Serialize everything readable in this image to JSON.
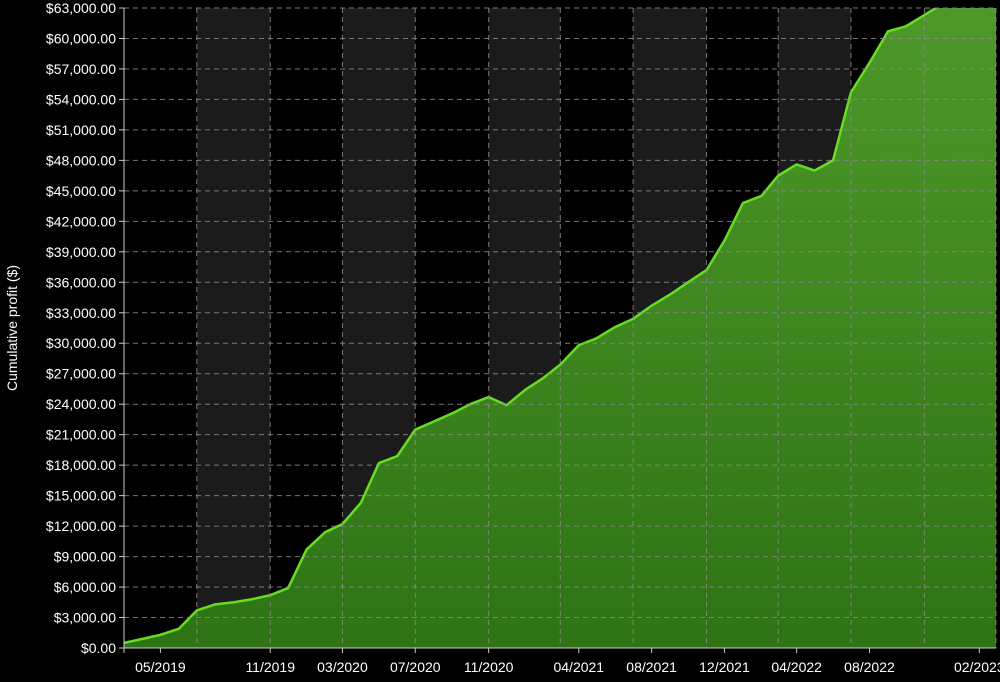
{
  "chart_data": {
    "type": "area",
    "title": "",
    "xlabel": "",
    "ylabel": "Cumulative profit ($)",
    "ylim": [
      0,
      63000
    ],
    "xlim": [
      "2019-03-01",
      "2023-03-01"
    ],
    "grid": true,
    "colors": {
      "background": "#000000",
      "band": "#1b1b1b",
      "line": "#66dd22",
      "fill_top": "#4f9a2a",
      "fill_bottom": "#2e7314",
      "axis": "#cccccc"
    },
    "y_ticks": [
      {
        "value": 0,
        "label": "$0.00"
      },
      {
        "value": 3000,
        "label": "$3,000.00"
      },
      {
        "value": 6000,
        "label": "$6,000.00"
      },
      {
        "value": 9000,
        "label": "$9,000.00"
      },
      {
        "value": 12000,
        "label": "$12,000.00"
      },
      {
        "value": 15000,
        "label": "$15,000.00"
      },
      {
        "value": 18000,
        "label": "$18,000.00"
      },
      {
        "value": 21000,
        "label": "$21,000.00"
      },
      {
        "value": 24000,
        "label": "$24,000.00"
      },
      {
        "value": 27000,
        "label": "$27,000.00"
      },
      {
        "value": 30000,
        "label": "$30,000.00"
      },
      {
        "value": 33000,
        "label": "$33,000.00"
      },
      {
        "value": 36000,
        "label": "$36,000.00"
      },
      {
        "value": 39000,
        "label": "$39,000.00"
      },
      {
        "value": 42000,
        "label": "$42,000.00"
      },
      {
        "value": 45000,
        "label": "$45,000.00"
      },
      {
        "value": 48000,
        "label": "$48,000.00"
      },
      {
        "value": 51000,
        "label": "$51,000.00"
      },
      {
        "value": 54000,
        "label": "$54,000.00"
      },
      {
        "value": 57000,
        "label": "$57,000.00"
      },
      {
        "value": 60000,
        "label": "$60,000.00"
      },
      {
        "value": 63000,
        "label": "$63,000.00"
      }
    ],
    "x_ticks": [
      {
        "date": "2019-05-01",
        "label": "05/2019"
      },
      {
        "date": "2019-11-01",
        "label": "11/2019"
      },
      {
        "date": "2020-03-01",
        "label": "03/2020"
      },
      {
        "date": "2020-07-01",
        "label": "07/2020"
      },
      {
        "date": "2020-11-01",
        "label": "11/2020"
      },
      {
        "date": "2021-04-01",
        "label": "04/2021"
      },
      {
        "date": "2021-08-01",
        "label": "08/2021"
      },
      {
        "date": "2021-12-01",
        "label": "12/2021"
      },
      {
        "date": "2022-04-01",
        "label": "04/2022"
      },
      {
        "date": "2022-08-01",
        "label": "08/2022"
      },
      {
        "date": "2023-02-01",
        "label": "02/2023"
      }
    ],
    "x_grid_dates": [
      "2019-03-01",
      "2019-07-01",
      "2019-11-01",
      "2020-03-01",
      "2020-07-01",
      "2020-11-01",
      "2021-03-01",
      "2021-07-01",
      "2021-11-01",
      "2022-03-01",
      "2022-07-01",
      "2022-11-01",
      "2023-03-01"
    ],
    "series": [
      {
        "x": [
          "2019-03-01",
          "2019-04-01",
          "2019-05-01",
          "2019-06-01",
          "2019-07-01",
          "2019-08-01",
          "2019-09-01",
          "2019-10-01",
          "2019-11-01",
          "2019-12-01",
          "2020-01-01",
          "2020-02-01",
          "2020-03-01",
          "2020-04-01",
          "2020-05-01",
          "2020-06-01",
          "2020-07-01",
          "2020-08-01",
          "2020-09-01",
          "2020-10-01",
          "2020-11-01",
          "2020-12-01",
          "2021-01-01",
          "2021-02-01",
          "2021-03-01",
          "2021-04-01",
          "2021-05-01",
          "2021-06-01",
          "2021-07-01",
          "2021-08-01",
          "2021-09-01",
          "2021-10-01",
          "2021-11-01",
          "2021-12-01",
          "2022-01-01",
          "2022-02-01",
          "2022-03-01",
          "2022-04-01",
          "2022-05-01",
          "2022-06-01",
          "2022-07-01",
          "2022-08-01",
          "2022-09-01",
          "2022-10-01",
          "2022-11-01",
          "2022-12-01",
          "2023-01-01",
          "2023-02-01",
          "2023-03-01"
        ],
        "values": [
          500,
          900,
          1300,
          1900,
          3700,
          4300,
          4500,
          4800,
          5200,
          5900,
          9700,
          11400,
          12200,
          14300,
          18200,
          18900,
          21500,
          22300,
          23100,
          24000,
          24700,
          23900,
          25400,
          26600,
          27900,
          29800,
          30500,
          31600,
          32400,
          33700,
          34800,
          36000,
          37200,
          40100,
          43800,
          44500,
          46500,
          47600,
          47000,
          48000,
          54700,
          57600,
          60700,
          61200,
          62300,
          63400,
          63800,
          64800,
          66000
        ]
      }
    ]
  }
}
